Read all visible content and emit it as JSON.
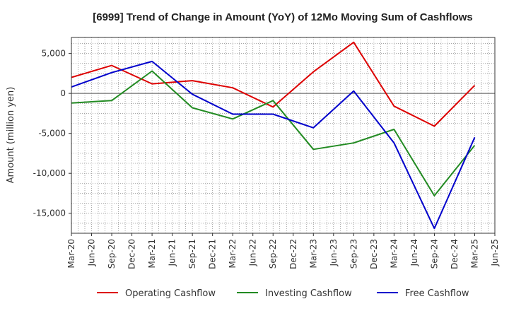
{
  "chart_data": {
    "type": "line",
    "title": "[6999]  Trend of Change in Amount (YoY) of 12Mo Moving Sum of Cashflows",
    "xlabel": "",
    "ylabel": "Amount (million yen)",
    "ylim": [
      -17500,
      7000
    ],
    "yticks": [
      5000,
      0,
      -5000,
      -10000,
      -15000
    ],
    "ytick_labels": [
      "5,000",
      "0",
      "-5,000",
      "-10,000",
      "-15,000"
    ],
    "categories": [
      "Mar-20",
      "Jun-20",
      "Sep-20",
      "Dec-20",
      "Mar-21",
      "Jun-21",
      "Sep-21",
      "Dec-21",
      "Mar-22",
      "Jun-22",
      "Sep-22",
      "Dec-22",
      "Mar-23",
      "Jun-23",
      "Sep-23",
      "Dec-23",
      "Mar-24",
      "Jun-24",
      "Sep-24",
      "Dec-24",
      "Mar-25",
      "Jun-25"
    ],
    "grid": true,
    "legend_position": "bottom",
    "series": [
      {
        "name": "Operating Cashflow",
        "color": "#dd0000",
        "points": [
          [
            0,
            2000
          ],
          [
            2,
            3500
          ],
          [
            4,
            1200
          ],
          [
            6,
            1600
          ],
          [
            8,
            700
          ],
          [
            10,
            -1700
          ],
          [
            12,
            2700
          ],
          [
            14,
            6400
          ],
          [
            16,
            -1600
          ],
          [
            18,
            -4100
          ],
          [
            20,
            1000
          ]
        ]
      },
      {
        "name": "Investing Cashflow",
        "color": "#228b22",
        "points": [
          [
            0,
            -1200
          ],
          [
            2,
            -900
          ],
          [
            4,
            2800
          ],
          [
            6,
            -1800
          ],
          [
            8,
            -3200
          ],
          [
            10,
            -900
          ],
          [
            12,
            -7000
          ],
          [
            14,
            -6200
          ],
          [
            16,
            -4500
          ],
          [
            18,
            -12800
          ],
          [
            20,
            -6500
          ]
        ]
      },
      {
        "name": "Free Cashflow",
        "color": "#0000cc",
        "points": [
          [
            0,
            800
          ],
          [
            2,
            2600
          ],
          [
            4,
            4000
          ],
          [
            6,
            -100
          ],
          [
            8,
            -2600
          ],
          [
            10,
            -2600
          ],
          [
            12,
            -4300
          ],
          [
            14,
            300
          ],
          [
            16,
            -6200
          ],
          [
            18,
            -16900
          ],
          [
            20,
            -5500
          ]
        ]
      }
    ]
  }
}
